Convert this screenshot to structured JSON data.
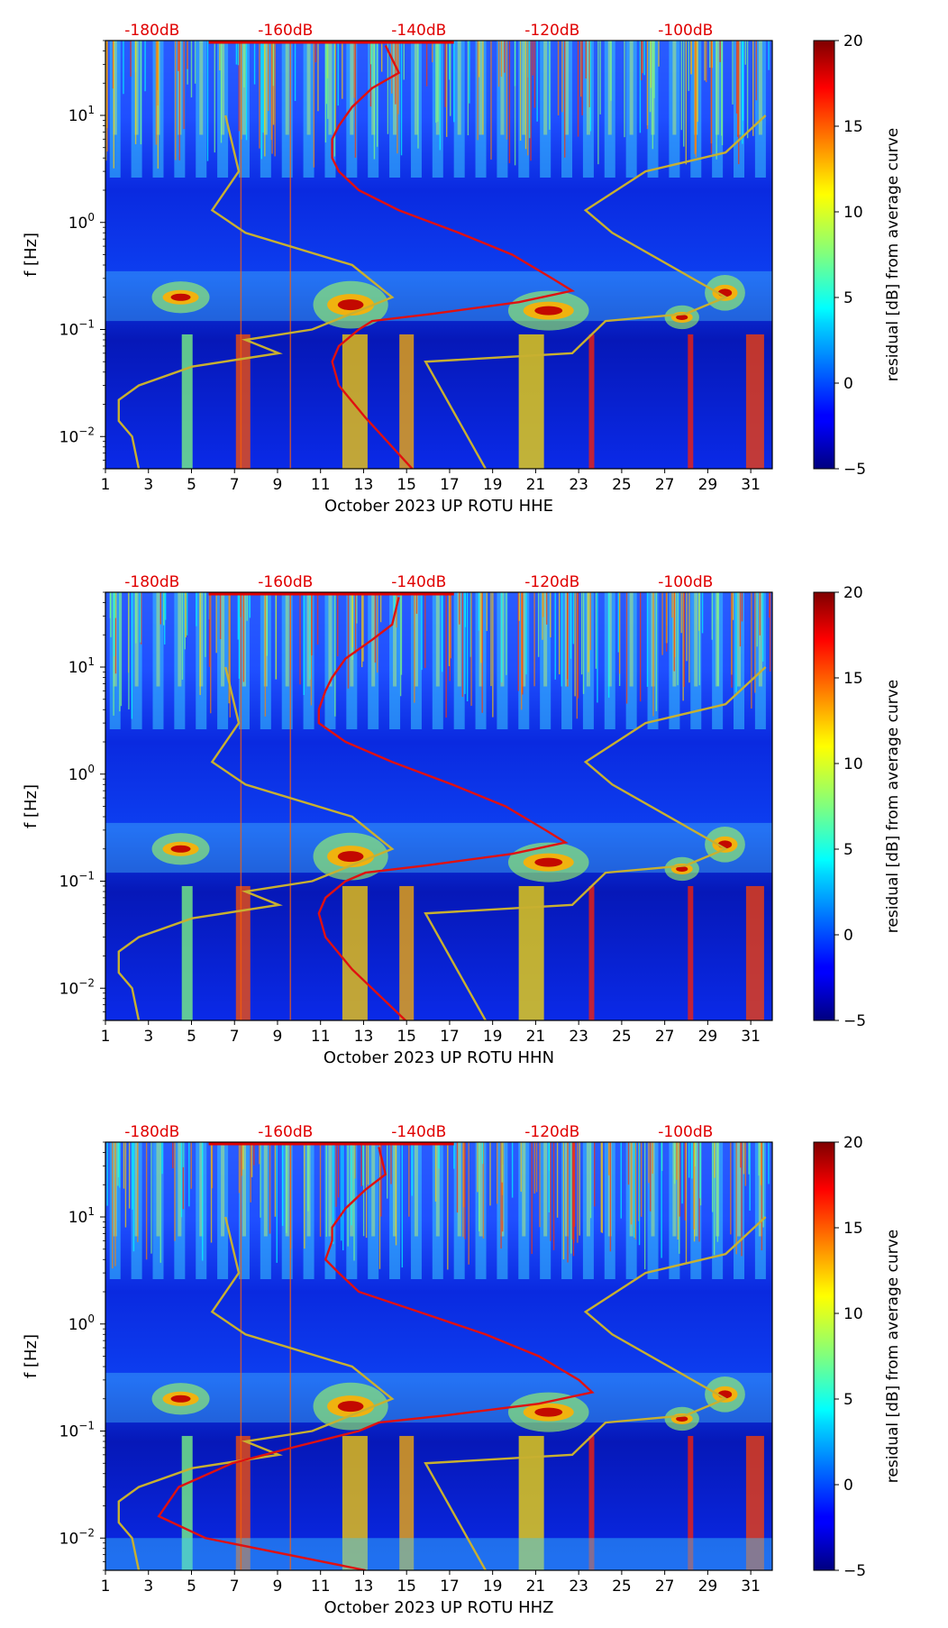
{
  "chart_data": [
    {
      "type": "heatmap",
      "channel": "HHE",
      "xlabel": "October 2023 UP ROTU  HHE",
      "ylabel": "f [Hz]",
      "x_ticks": [
        "1",
        "3",
        "5",
        "7",
        "9",
        "11",
        "13",
        "15",
        "17",
        "19",
        "21",
        "23",
        "25",
        "27",
        "29",
        "31"
      ],
      "xlim": [
        1,
        32
      ],
      "y_ticks": [
        "10^-2",
        "10^-1",
        "10^0",
        "10^1"
      ],
      "ylim": [
        0.005,
        50
      ],
      "top_ticks": [
        "-180dB",
        "-160dB",
        "-140dB",
        "-120dB",
        "-100dB"
      ],
      "top_range_db": [
        -187,
        -87
      ],
      "colorbar": {
        "label": "residual [dB] from average curve",
        "range": [
          -5,
          20
        ],
        "ticks": [
          "20",
          "15",
          "10",
          "5",
          "0",
          "−5"
        ]
      },
      "red_curve_db": [
        {
          "f": 45,
          "db": -145
        },
        {
          "f": 25,
          "db": -143
        },
        {
          "f": 18,
          "db": -147
        },
        {
          "f": 12,
          "db": -150
        },
        {
          "f": 8,
          "db": -152
        },
        {
          "f": 6,
          "db": -153
        },
        {
          "f": 4,
          "db": -153
        },
        {
          "f": 3,
          "db": -152
        },
        {
          "f": 2,
          "db": -149
        },
        {
          "f": 1.3,
          "db": -143
        },
        {
          "f": 0.8,
          "db": -134
        },
        {
          "f": 0.5,
          "db": -126
        },
        {
          "f": 0.3,
          "db": -120
        },
        {
          "f": 0.23,
          "db": -117
        },
        {
          "f": 0.18,
          "db": -125
        },
        {
          "f": 0.14,
          "db": -138
        },
        {
          "f": 0.12,
          "db": -147
        },
        {
          "f": 0.1,
          "db": -149
        },
        {
          "f": 0.07,
          "db": -152
        },
        {
          "f": 0.05,
          "db": -153
        },
        {
          "f": 0.03,
          "db": -152
        },
        {
          "f": 0.015,
          "db": -148
        },
        {
          "f": 0.005,
          "db": -141
        }
      ],
      "yellow_curves_db": [
        [
          {
            "f": 10,
            "db": -169
          },
          {
            "f": 3,
            "db": -167
          },
          {
            "f": 1.3,
            "db": -171
          },
          {
            "f": 0.8,
            "db": -166
          },
          {
            "f": 0.4,
            "db": -150
          },
          {
            "f": 0.2,
            "db": -144
          },
          {
            "f": 0.1,
            "db": -156
          },
          {
            "f": 0.08,
            "db": -166
          },
          {
            "f": 0.06,
            "db": -161
          },
          {
            "f": 0.045,
            "db": -174
          },
          {
            "f": 0.03,
            "db": -182
          },
          {
            "f": 0.022,
            "db": -185
          },
          {
            "f": 0.014,
            "db": -185
          },
          {
            "f": 0.01,
            "db": -183
          },
          {
            "f": 0.005,
            "db": -182
          }
        ],
        [
          {
            "f": 10,
            "db": -88
          },
          {
            "f": 4.5,
            "db": -94
          },
          {
            "f": 3,
            "db": -106
          },
          {
            "f": 1.3,
            "db": -115
          },
          {
            "f": 0.8,
            "db": -111
          },
          {
            "f": 0.2,
            "db": -94
          },
          {
            "f": 0.14,
            "db": -100
          },
          {
            "f": 0.12,
            "db": -112
          },
          {
            "f": 0.06,
            "db": -117
          },
          {
            "f": 0.05,
            "db": -139
          },
          {
            "f": 0.005,
            "db": -130
          }
        ]
      ]
    },
    {
      "type": "heatmap",
      "channel": "HHN",
      "xlabel": "October 2023 UP ROTU  HHN",
      "ylabel": "f [Hz]",
      "x_ticks": [
        "1",
        "3",
        "5",
        "7",
        "9",
        "11",
        "13",
        "15",
        "17",
        "19",
        "21",
        "23",
        "25",
        "27",
        "29",
        "31"
      ],
      "xlim": [
        1,
        32
      ],
      "y_ticks": [
        "10^-2",
        "10^-1",
        "10^0",
        "10^1"
      ],
      "ylim": [
        0.005,
        50
      ],
      "top_ticks": [
        "-180dB",
        "-160dB",
        "-140dB",
        "-120dB",
        "-100dB"
      ],
      "top_range_db": [
        -187,
        -87
      ],
      "colorbar": {
        "label": "residual [dB] from average curve",
        "range": [
          -5,
          20
        ],
        "ticks": [
          "20",
          "15",
          "10",
          "5",
          "0",
          "−5"
        ]
      },
      "red_curve_db": [
        {
          "f": 45,
          "db": -143
        },
        {
          "f": 25,
          "db": -144
        },
        {
          "f": 18,
          "db": -147
        },
        {
          "f": 12,
          "db": -151
        },
        {
          "f": 8,
          "db": -153
        },
        {
          "f": 6,
          "db": -154
        },
        {
          "f": 4,
          "db": -155
        },
        {
          "f": 3,
          "db": -155
        },
        {
          "f": 2,
          "db": -151
        },
        {
          "f": 1.3,
          "db": -144
        },
        {
          "f": 0.8,
          "db": -135
        },
        {
          "f": 0.5,
          "db": -127
        },
        {
          "f": 0.3,
          "db": -121
        },
        {
          "f": 0.23,
          "db": -118
        },
        {
          "f": 0.18,
          "db": -126
        },
        {
          "f": 0.14,
          "db": -139
        },
        {
          "f": 0.12,
          "db": -148
        },
        {
          "f": 0.1,
          "db": -151
        },
        {
          "f": 0.07,
          "db": -154
        },
        {
          "f": 0.05,
          "db": -155
        },
        {
          "f": 0.03,
          "db": -154
        },
        {
          "f": 0.015,
          "db": -150
        },
        {
          "f": 0.005,
          "db": -142
        }
      ],
      "yellow_curves_db": [
        [
          {
            "f": 10,
            "db": -169
          },
          {
            "f": 3,
            "db": -167
          },
          {
            "f": 1.3,
            "db": -171
          },
          {
            "f": 0.8,
            "db": -166
          },
          {
            "f": 0.4,
            "db": -150
          },
          {
            "f": 0.2,
            "db": -144
          },
          {
            "f": 0.1,
            "db": -156
          },
          {
            "f": 0.08,
            "db": -166
          },
          {
            "f": 0.06,
            "db": -161
          },
          {
            "f": 0.045,
            "db": -174
          },
          {
            "f": 0.03,
            "db": -182
          },
          {
            "f": 0.022,
            "db": -185
          },
          {
            "f": 0.014,
            "db": -185
          },
          {
            "f": 0.01,
            "db": -183
          },
          {
            "f": 0.005,
            "db": -182
          }
        ],
        [
          {
            "f": 10,
            "db": -88
          },
          {
            "f": 4.5,
            "db": -94
          },
          {
            "f": 3,
            "db": -106
          },
          {
            "f": 1.3,
            "db": -115
          },
          {
            "f": 0.8,
            "db": -111
          },
          {
            "f": 0.2,
            "db": -94
          },
          {
            "f": 0.14,
            "db": -100
          },
          {
            "f": 0.12,
            "db": -112
          },
          {
            "f": 0.06,
            "db": -117
          },
          {
            "f": 0.05,
            "db": -139
          },
          {
            "f": 0.005,
            "db": -130
          }
        ]
      ]
    },
    {
      "type": "heatmap",
      "channel": "HHZ",
      "xlabel": "October 2023 UP ROTU  HHZ",
      "ylabel": "f [Hz]",
      "x_ticks": [
        "1",
        "3",
        "5",
        "7",
        "9",
        "11",
        "13",
        "15",
        "17",
        "19",
        "21",
        "23",
        "25",
        "27",
        "29",
        "31"
      ],
      "xlim": [
        1,
        32
      ],
      "y_ticks": [
        "10^-2",
        "10^-1",
        "10^0",
        "10^1"
      ],
      "ylim": [
        0.005,
        50
      ],
      "top_ticks": [
        "-180dB",
        "-160dB",
        "-140dB",
        "-120dB",
        "-100dB"
      ],
      "top_range_db": [
        -187,
        -87
      ],
      "colorbar": {
        "label": "residual [dB] from average curve",
        "range": [
          -5,
          20
        ],
        "ticks": [
          "20",
          "15",
          "10",
          "5",
          "0",
          "−5"
        ]
      },
      "red_curve_db": [
        {
          "f": 45,
          "db": -146
        },
        {
          "f": 25,
          "db": -145
        },
        {
          "f": 18,
          "db": -148
        },
        {
          "f": 12,
          "db": -151
        },
        {
          "f": 8,
          "db": -153
        },
        {
          "f": 6,
          "db": -153
        },
        {
          "f": 4,
          "db": -154
        },
        {
          "f": 3,
          "db": -152
        },
        {
          "f": 2,
          "db": -149
        },
        {
          "f": 1.3,
          "db": -140
        },
        {
          "f": 0.8,
          "db": -130
        },
        {
          "f": 0.5,
          "db": -122
        },
        {
          "f": 0.3,
          "db": -116
        },
        {
          "f": 0.23,
          "db": -114
        },
        {
          "f": 0.18,
          "db": -122
        },
        {
          "f": 0.14,
          "db": -136
        },
        {
          "f": 0.12,
          "db": -146
        },
        {
          "f": 0.1,
          "db": -149
        },
        {
          "f": 0.07,
          "db": -159
        },
        {
          "f": 0.05,
          "db": -168
        },
        {
          "f": 0.03,
          "db": -176
        },
        {
          "f": 0.016,
          "db": -179
        },
        {
          "f": 0.01,
          "db": -172
        },
        {
          "f": 0.005,
          "db": -148
        }
      ],
      "yellow_curves_db": [
        [
          {
            "f": 10,
            "db": -169
          },
          {
            "f": 3,
            "db": -167
          },
          {
            "f": 1.3,
            "db": -171
          },
          {
            "f": 0.8,
            "db": -166
          },
          {
            "f": 0.4,
            "db": -150
          },
          {
            "f": 0.2,
            "db": -144
          },
          {
            "f": 0.1,
            "db": -156
          },
          {
            "f": 0.08,
            "db": -166
          },
          {
            "f": 0.06,
            "db": -161
          },
          {
            "f": 0.045,
            "db": -174
          },
          {
            "f": 0.03,
            "db": -182
          },
          {
            "f": 0.022,
            "db": -185
          },
          {
            "f": 0.014,
            "db": -185
          },
          {
            "f": 0.01,
            "db": -183
          },
          {
            "f": 0.005,
            "db": -182
          }
        ],
        [
          {
            "f": 10,
            "db": -88
          },
          {
            "f": 4.5,
            "db": -94
          },
          {
            "f": 3,
            "db": -106
          },
          {
            "f": 1.3,
            "db": -115
          },
          {
            "f": 0.8,
            "db": -111
          },
          {
            "f": 0.2,
            "db": -94
          },
          {
            "f": 0.14,
            "db": -100
          },
          {
            "f": 0.12,
            "db": -112
          },
          {
            "f": 0.06,
            "db": -117
          },
          {
            "f": 0.05,
            "db": -139
          },
          {
            "f": 0.005,
            "db": -130
          }
        ]
      ]
    }
  ]
}
